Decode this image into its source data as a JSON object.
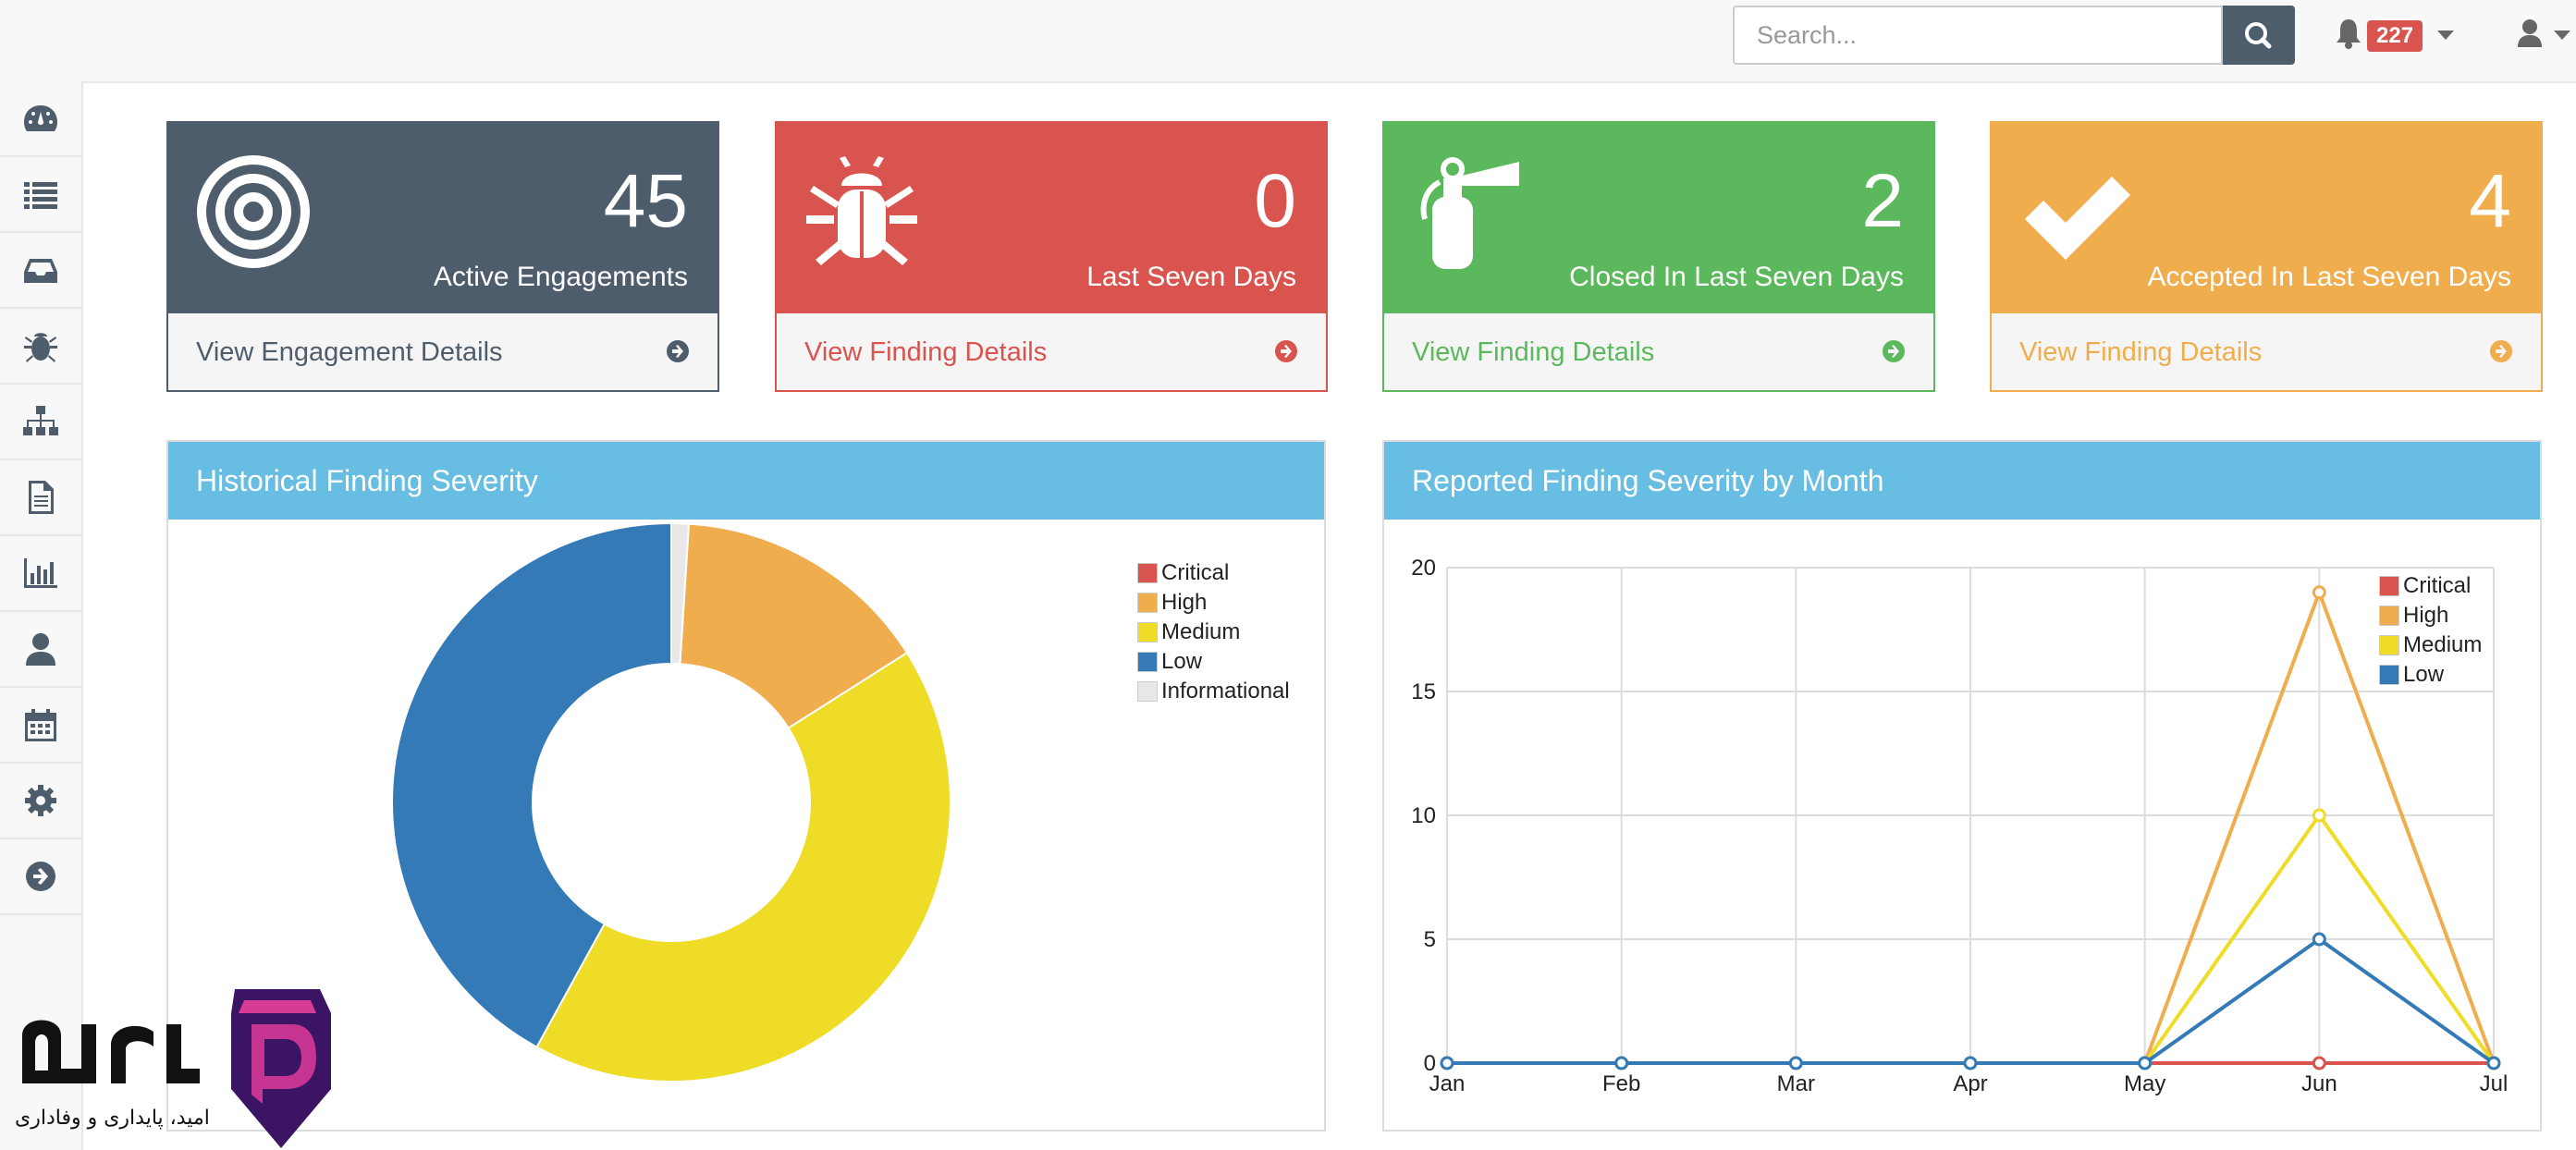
{
  "search": {
    "placeholder": "Search..."
  },
  "alerts": {
    "count": "227"
  },
  "stats": [
    {
      "value": "45",
      "label": "Active Engagements",
      "link": "View Engagement Details",
      "color": "#4e5d6c",
      "icon": "target-icon"
    },
    {
      "value": "0",
      "label": "Last Seven Days",
      "link": "View Finding Details",
      "color": "#d9534f",
      "icon": "bug-icon"
    },
    {
      "value": "2",
      "label": "Closed In Last Seven Days",
      "link": "View Finding Details",
      "color": "#5cb85c",
      "icon": "fire-extinguisher-icon"
    },
    {
      "value": "4",
      "label": "Accepted In Last Seven Days",
      "link": "View Finding Details",
      "color": "#f0ad4e",
      "icon": "check-icon"
    }
  ],
  "sidebar": {
    "icons": [
      "dashboard-icon",
      "list-icon",
      "inbox-icon",
      "bug-icon",
      "sitemap-icon",
      "file-icon",
      "bar-chart-icon",
      "user-icon",
      "calendar-icon",
      "gear-icon",
      "arrow-circle-right-icon"
    ]
  },
  "panels": {
    "historical_title": "Historical Finding Severity",
    "monthly_title": "Reported Finding Severity by Month"
  },
  "watermark": {
    "text": "امید، پایداری و وفاداری"
  },
  "chart_data": [
    {
      "type": "pie",
      "variant": "donut",
      "title": "Historical Finding Severity",
      "legend": [
        "Critical",
        "High",
        "Medium",
        "Low",
        "Informational"
      ],
      "legend_placement": "top-right",
      "colors": [
        "#d9534f",
        "#f0ad4e",
        "#eedc26",
        "#337ab7",
        "#e8e8e8"
      ],
      "values": [
        0,
        15,
        42,
        42,
        1
      ]
    },
    {
      "type": "line",
      "title": "Reported Finding Severity by Month",
      "categories": [
        "Jan",
        "Feb",
        "Mar",
        "Apr",
        "May",
        "Jun",
        "Jul"
      ],
      "ylim": [
        0,
        20
      ],
      "yticks": [
        0,
        5,
        10,
        15,
        20
      ],
      "grid": true,
      "legend_placement": "top-right",
      "series": [
        {
          "name": "Critical",
          "color": "#d9534f",
          "values": [
            0,
            0,
            0,
            0,
            0,
            0,
            0
          ]
        },
        {
          "name": "High",
          "color": "#f0ad4e",
          "values": [
            0,
            0,
            0,
            0,
            0,
            19,
            0
          ]
        },
        {
          "name": "Medium",
          "color": "#eedc26",
          "values": [
            0,
            0,
            0,
            0,
            0,
            10,
            0
          ]
        },
        {
          "name": "Low",
          "color": "#337ab7",
          "values": [
            0,
            0,
            0,
            0,
            0,
            5,
            0
          ]
        }
      ]
    }
  ]
}
